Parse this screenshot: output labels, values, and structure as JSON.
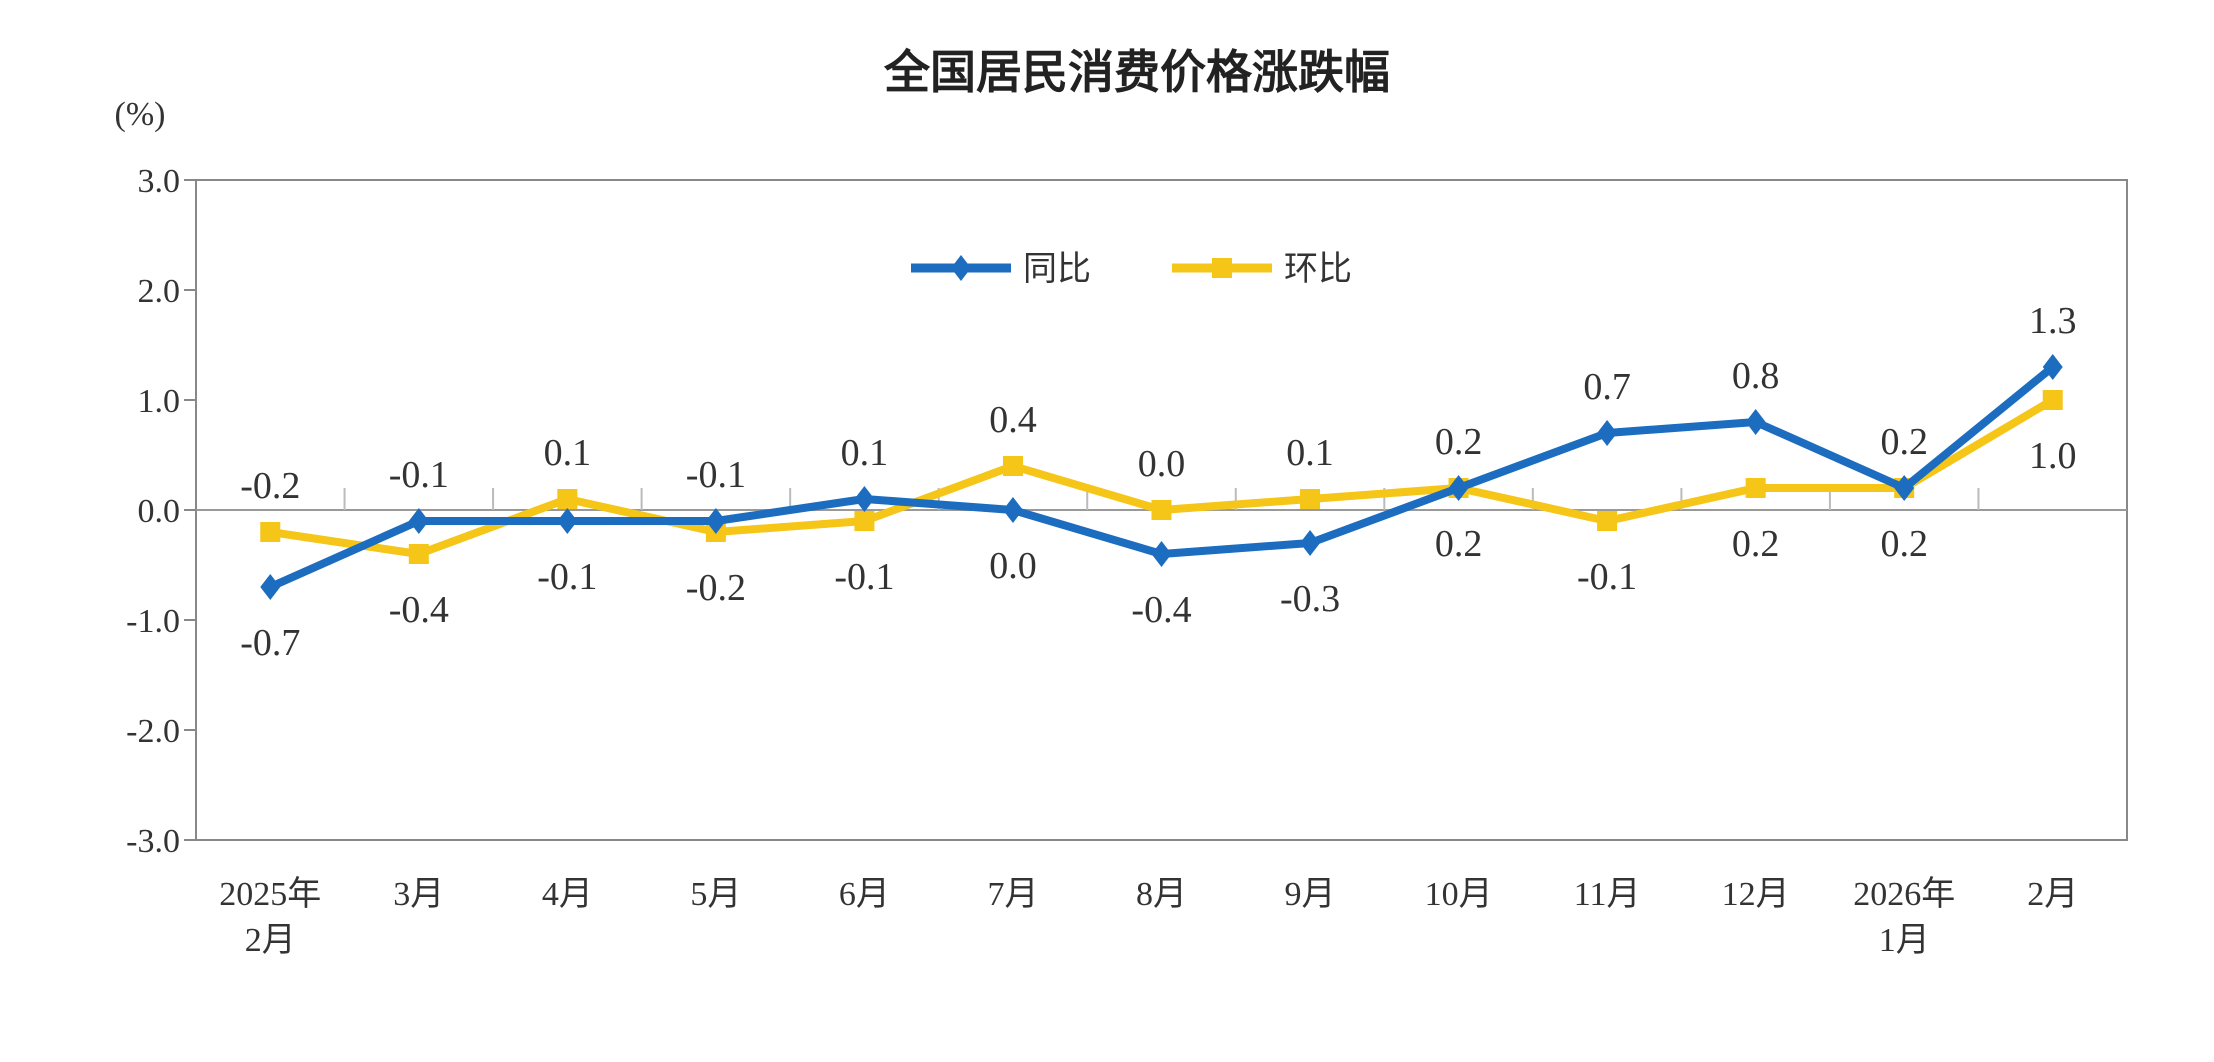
{
  "chart_data": {
    "type": "line",
    "title": "全国居民消费价格涨跌幅",
    "ylabel": "(%)",
    "ylim": [
      -3.0,
      3.0
    ],
    "yticks": [
      "3.0",
      "2.0",
      "1.0",
      "0.0",
      "-1.0",
      "-2.0",
      "-3.0"
    ],
    "categories": [
      [
        "2025年",
        "2月"
      ],
      [
        "3月"
      ],
      [
        "4月"
      ],
      [
        "5月"
      ],
      [
        "6月"
      ],
      [
        "7月"
      ],
      [
        "8月"
      ],
      [
        "9月"
      ],
      [
        "10月"
      ],
      [
        "11月"
      ],
      [
        "12月"
      ],
      [
        "2026年",
        "1月"
      ],
      [
        "2月"
      ]
    ],
    "legend_position": "top-center",
    "grid": false,
    "series": [
      {
        "name": "同比",
        "color": "#1c6cc0",
        "marker": "diamond",
        "values": [
          -0.7,
          -0.1,
          -0.1,
          -0.1,
          0.1,
          0.0,
          -0.4,
          -0.3,
          0.2,
          0.7,
          0.8,
          0.2,
          1.3
        ],
        "labels": [
          "-0.7",
          "-0.1",
          "-0.1",
          "-0.1",
          "0.1",
          "0.0",
          "-0.4",
          "-0.3",
          "0.2",
          "0.7",
          "0.8",
          "0.2",
          "1.3"
        ]
      },
      {
        "name": "环比",
        "color": "#f5c518",
        "marker": "square",
        "values": [
          -0.2,
          -0.4,
          0.1,
          -0.2,
          -0.1,
          0.4,
          0.0,
          0.1,
          0.2,
          -0.1,
          0.2,
          0.2,
          1.0
        ],
        "labels": [
          "-0.2",
          "-0.4",
          "0.1",
          "-0.2",
          "-0.1",
          "0.4",
          "0.0",
          "0.1",
          "0.2",
          "-0.1",
          "0.2",
          "0.2",
          "1.0"
        ]
      }
    ]
  }
}
